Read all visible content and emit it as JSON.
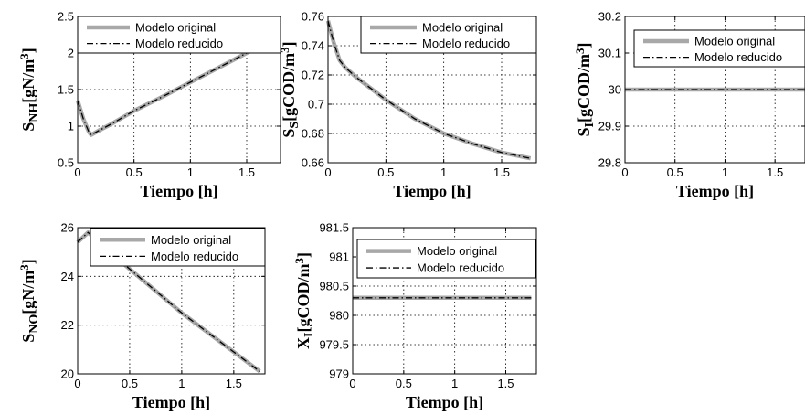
{
  "legend": {
    "original": "Modelo original",
    "reducido": "Modelo reducido"
  },
  "colors": {
    "original": "#a8a8a8",
    "reducido": "#000000",
    "grid": "#000000"
  },
  "chart_data": [
    {
      "type": "line",
      "xlabel": "Tiempo [h]",
      "ylabel": {
        "main": "S",
        "sub": "NH",
        "bracket": "[gN/m",
        "sup": "3",
        "close": "]"
      },
      "xlim": [
        0,
        1.8
      ],
      "ylim": [
        0.5,
        2.5
      ],
      "xticks": [
        0,
        0.5,
        1,
        1.5
      ],
      "xticklabels": [
        "0",
        "0.5",
        "1",
        "1.5"
      ],
      "yticks": [
        0.5,
        1,
        1.5,
        2,
        2.5
      ],
      "yticklabels": [
        "0.5",
        "1",
        "1.5",
        "2",
        "2.5"
      ],
      "grid": true,
      "legend_position": "top",
      "series": [
        {
          "name": "Modelo original",
          "x": [
            0,
            0.05,
            0.1,
            0.12,
            0.2,
            0.3,
            0.5,
            0.75,
            1.0,
            1.25,
            1.5,
            1.75
          ],
          "y": [
            1.35,
            1.1,
            0.92,
            0.88,
            0.95,
            1.03,
            1.21,
            1.4,
            1.6,
            1.8,
            2.0,
            2.2
          ]
        },
        {
          "name": "Modelo reducido",
          "x": [
            0,
            0.05,
            0.1,
            0.12,
            0.2,
            0.3,
            0.5,
            0.75,
            1.0,
            1.25,
            1.5,
            1.75
          ],
          "y": [
            1.35,
            1.1,
            0.92,
            0.88,
            0.95,
            1.03,
            1.21,
            1.4,
            1.6,
            1.8,
            2.0,
            2.2
          ]
        }
      ]
    },
    {
      "type": "line",
      "xlabel": "Tiempo [h]",
      "ylabel": {
        "main": "S",
        "sub": "S",
        "bracket": "[gCOD/m",
        "sup": "3",
        "close": "]"
      },
      "xlim": [
        0,
        1.8
      ],
      "ylim": [
        0.66,
        0.76
      ],
      "xticks": [
        0,
        0.5,
        1,
        1.5
      ],
      "xticklabels": [
        "0",
        "0.5",
        "1",
        "1.5"
      ],
      "yticks": [
        0.66,
        0.68,
        0.7,
        0.72,
        0.74,
        0.76
      ],
      "yticklabels": [
        "0.66",
        "0.68",
        "0.7",
        "0.72",
        "0.74",
        "0.76"
      ],
      "grid": true,
      "legend_position": "top",
      "series": [
        {
          "name": "Modelo original",
          "x": [
            0,
            0.05,
            0.1,
            0.15,
            0.25,
            0.5,
            0.75,
            1.0,
            1.25,
            1.5,
            1.75
          ],
          "y": [
            0.757,
            0.742,
            0.73,
            0.725,
            0.718,
            0.703,
            0.69,
            0.68,
            0.673,
            0.667,
            0.663
          ]
        },
        {
          "name": "Modelo reducido",
          "x": [
            0,
            0.05,
            0.1,
            0.15,
            0.25,
            0.5,
            0.75,
            1.0,
            1.25,
            1.5,
            1.75
          ],
          "y": [
            0.757,
            0.742,
            0.73,
            0.725,
            0.718,
            0.703,
            0.69,
            0.68,
            0.673,
            0.667,
            0.663
          ]
        }
      ]
    },
    {
      "type": "line",
      "xlabel": "Tiempo [h]",
      "ylabel": {
        "main": "S",
        "sub": "I",
        "bracket": "[gCOD/m",
        "sup": "3",
        "close": "]"
      },
      "xlim": [
        0,
        1.8
      ],
      "ylim": [
        29.8,
        30.2
      ],
      "xticks": [
        0,
        0.5,
        1,
        1.5
      ],
      "xticklabels": [
        "0",
        "0.5",
        "1",
        "1.5"
      ],
      "yticks": [
        29.8,
        29.9,
        30,
        30.1,
        30.2
      ],
      "yticklabels": [
        "29.8",
        "29.9",
        "30",
        "30.1",
        "30.2"
      ],
      "grid": true,
      "legend_position": "top",
      "series": [
        {
          "name": "Modelo original",
          "x": [
            0,
            1.8
          ],
          "y": [
            30,
            30
          ]
        },
        {
          "name": "Modelo reducido",
          "x": [
            0,
            1.8
          ],
          "y": [
            30,
            30
          ]
        }
      ]
    },
    {
      "type": "line",
      "xlabel": "Tiempo [h]",
      "ylabel": {
        "main": "S",
        "sub": "NO",
        "bracket": "[gN/m",
        "sup": "3",
        "close": "]"
      },
      "xlim": [
        0,
        1.8
      ],
      "ylim": [
        20,
        26
      ],
      "xticks": [
        0,
        0.5,
        1,
        1.5
      ],
      "xticklabels": [
        "0",
        "0.5",
        "1",
        "1.5"
      ],
      "yticks": [
        20,
        22,
        24,
        26
      ],
      "yticklabels": [
        "20",
        "22",
        "24",
        "26"
      ],
      "grid": true,
      "legend_position": "top",
      "series": [
        {
          "name": "Modelo original",
          "x": [
            0,
            0.1,
            0.5,
            1.0,
            1.5,
            1.75
          ],
          "y": [
            25.4,
            25.8,
            24.3,
            22.5,
            20.9,
            20.1
          ]
        },
        {
          "name": "Modelo reducido",
          "x": [
            0,
            0.1,
            0.5,
            1.0,
            1.5,
            1.75
          ],
          "y": [
            25.4,
            25.8,
            24.3,
            22.5,
            20.9,
            20.1
          ]
        }
      ]
    },
    {
      "type": "line",
      "xlabel": "Tiempo [h]",
      "ylabel": {
        "main": "X",
        "sub": "I",
        "bracket": "[gCOD/m",
        "sup": "3",
        "close": "]"
      },
      "xlim": [
        0,
        1.8
      ],
      "ylim": [
        979,
        981.5
      ],
      "xticks": [
        0,
        0.5,
        1,
        1.5
      ],
      "xticklabels": [
        "0",
        "0.5",
        "1",
        "1.5"
      ],
      "yticks": [
        979,
        979.5,
        980,
        980.5,
        981,
        981.5
      ],
      "yticklabels": [
        "979",
        "979.5",
        "980",
        "980.5",
        "981",
        "981.5"
      ],
      "grid": true,
      "legend_position": "top",
      "series": [
        {
          "name": "Modelo original",
          "x": [
            0,
            1.75
          ],
          "y": [
            980.3,
            980.3
          ]
        },
        {
          "name": "Modelo reducido",
          "x": [
            0,
            1.75
          ],
          "y": [
            980.3,
            980.3
          ]
        }
      ]
    }
  ]
}
